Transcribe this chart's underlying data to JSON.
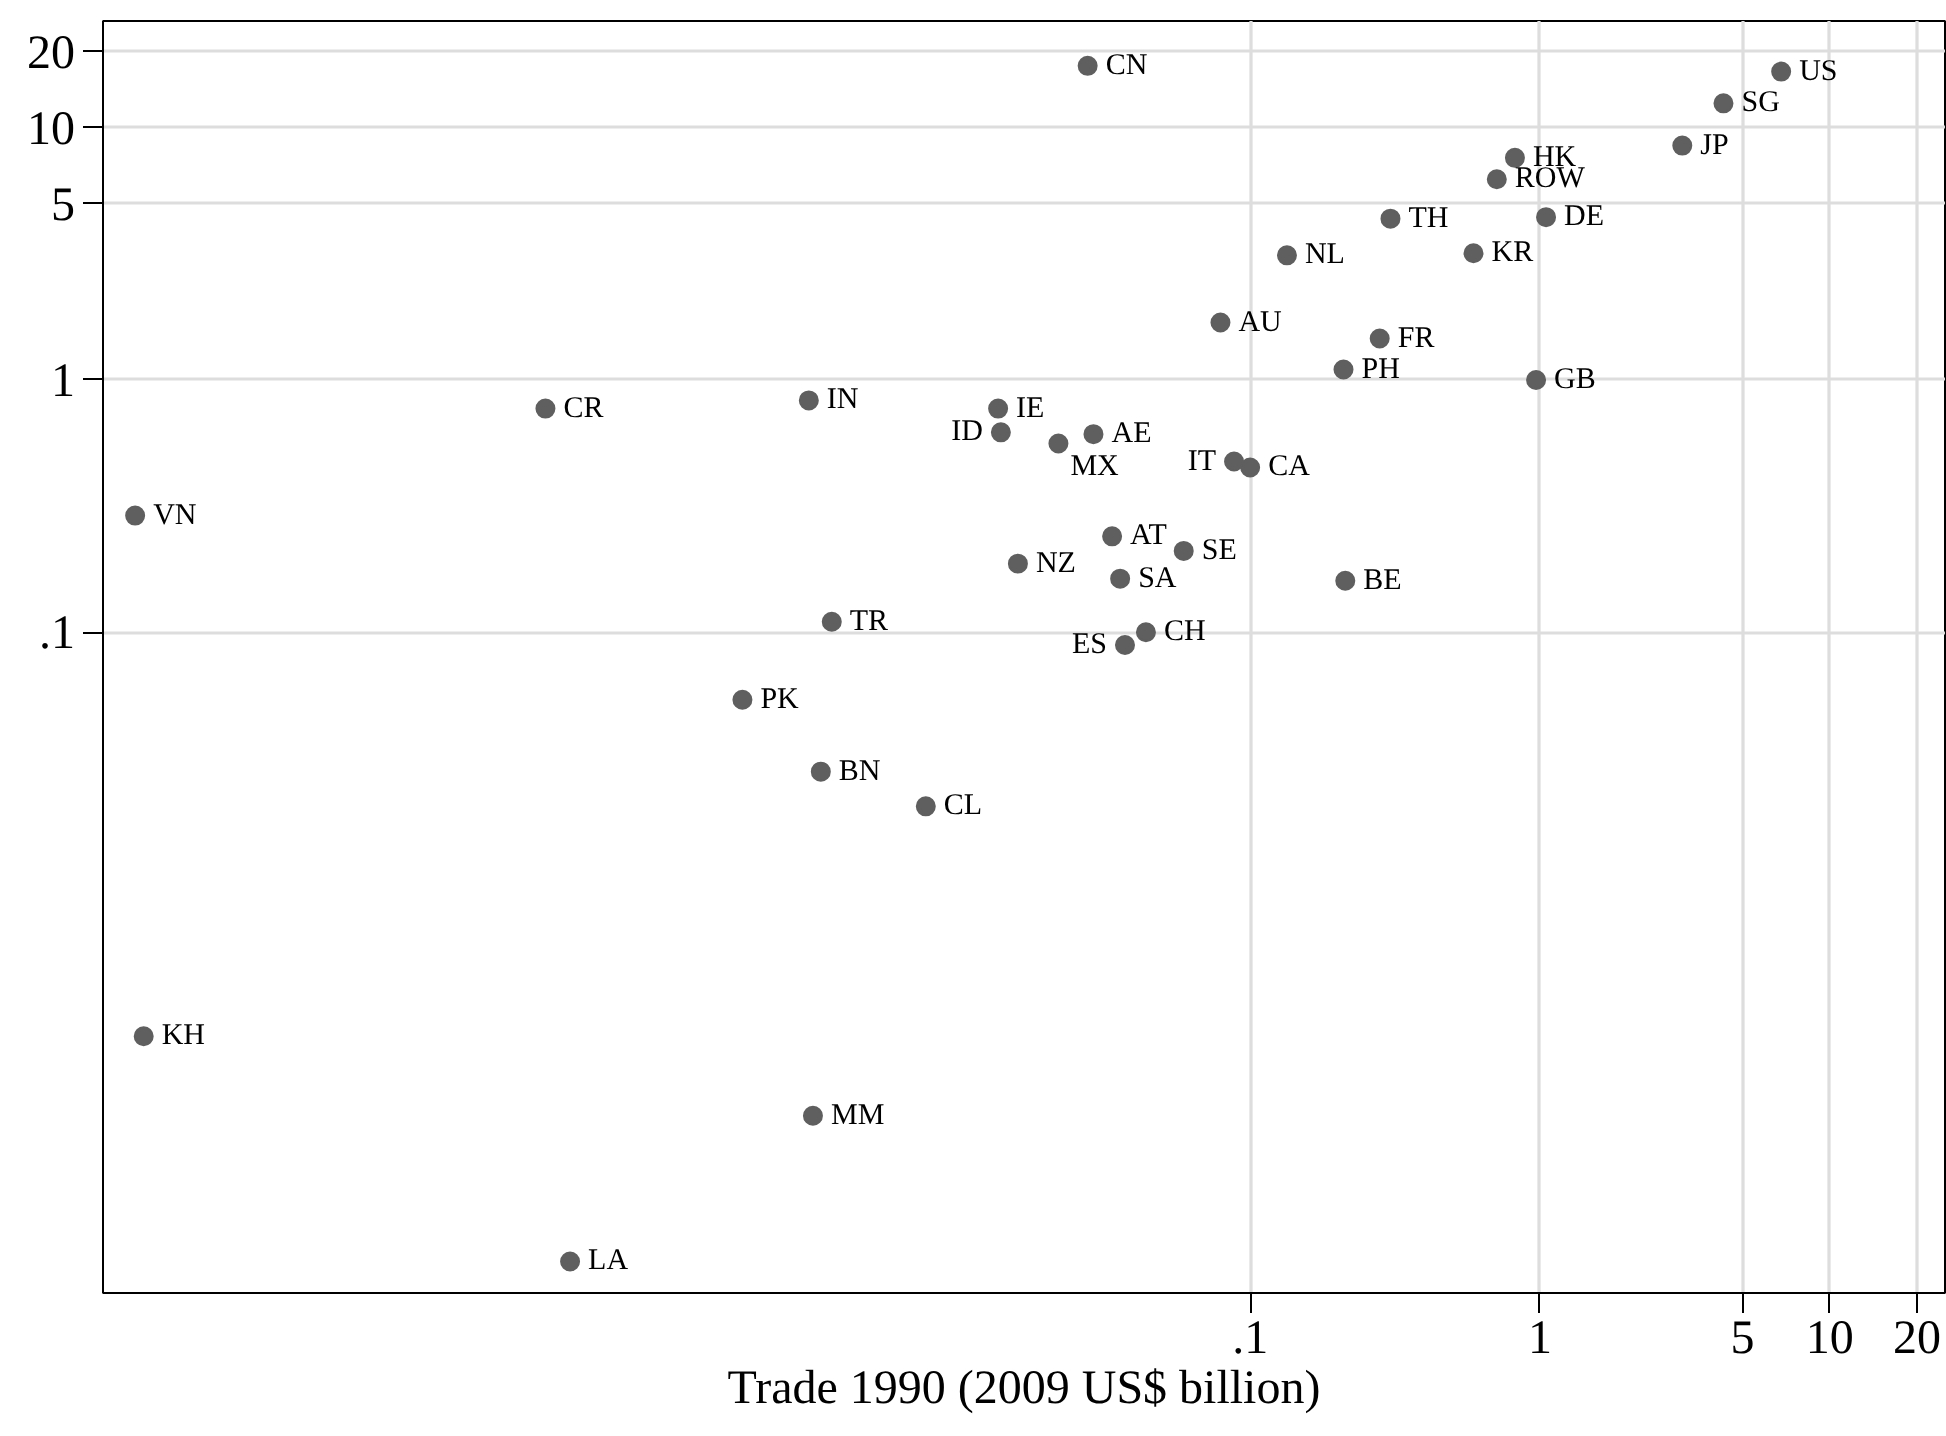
{
  "chart_data": {
    "type": "scatter",
    "xlabel": "Trade 1990 (2009 US$ billion)",
    "log": "xy",
    "xlim": [
      1.1e-05,
      25
    ],
    "ylim": [
      0.00024,
      26.5
    ],
    "xticks": [
      {
        "value": 0.1,
        "label": ".1"
      },
      1,
      5,
      10,
      20
    ],
    "yticks": [
      {
        "value": 0.1,
        "label": ".1"
      },
      1,
      5,
      10,
      20
    ],
    "grid": true,
    "marker": "circle",
    "series": [
      {
        "color": "#5f5f5f",
        "x": [
          1.42e-05,
          0.00037,
          0.0275,
          0.079,
          0.134,
          0.003,
          0.0135,
          0.0138,
          0.0218,
          0.0288,
          0.088,
          0.1,
          0.0334,
          0.059,
          0.0158,
          0.0356,
          0.0036,
          0.0437,
          0.037,
          0.00177,
          6.8,
          4.3,
          3.1,
          0.82,
          0.71,
          0.305,
          1.05,
          0.59,
          0.28,
          0.21,
          0.97,
          0.213,
          1.52e-05,
          0.00045,
          0.0033,
          0.0076,
          0.0031
        ],
        "values": [
          0.29,
          0.77,
          17.6,
          1.69,
          3.12,
          0.83,
          0.77,
          0.62,
          0.56,
          0.61,
          0.475,
          0.45,
          0.24,
          0.21,
          0.187,
          0.163,
          0.11,
          0.1,
          0.089,
          0.054,
          16.7,
          12.5,
          8.5,
          7.6,
          6.25,
          4.36,
          4.42,
          3.18,
          1.46,
          1.1,
          1.0,
          0.16,
          0.0025,
          0.00032,
          0.028,
          0.0204,
          0.00121
        ]
      }
    ],
    "annotations": [
      {
        "text": "VN",
        "x": 1.42e-05,
        "y": 0.29
      },
      {
        "text": "CR",
        "x": 0.00037,
        "y": 0.77
      },
      {
        "text": "CN",
        "x": 0.0275,
        "y": 17.6
      },
      {
        "text": "AU",
        "x": 0.079,
        "y": 1.69
      },
      {
        "text": "NL",
        "x": 0.134,
        "y": 3.12
      },
      {
        "text": "IN",
        "x": 0.003,
        "y": 0.83
      },
      {
        "text": "IE",
        "x": 0.0135,
        "y": 0.77
      },
      {
        "text": "ID",
        "x": 0.0138,
        "y": 0.62
      },
      {
        "text": "MX",
        "x": 0.0218,
        "y": 0.56
      },
      {
        "text": "AE",
        "x": 0.0288,
        "y": 0.61
      },
      {
        "text": "IT",
        "x": 0.088,
        "y": 0.475
      },
      {
        "text": "CA",
        "x": 0.1,
        "y": 0.45
      },
      {
        "text": "AT",
        "x": 0.0334,
        "y": 0.24
      },
      {
        "text": "SE",
        "x": 0.059,
        "y": 0.21
      },
      {
        "text": "NZ",
        "x": 0.0158,
        "y": 0.187
      },
      {
        "text": "SA",
        "x": 0.0356,
        "y": 0.163
      },
      {
        "text": "TR",
        "x": 0.0036,
        "y": 0.11
      },
      {
        "text": "CH",
        "x": 0.0437,
        "y": 0.1
      },
      {
        "text": "ES",
        "x": 0.037,
        "y": 0.089
      },
      {
        "text": "PK",
        "x": 0.00177,
        "y": 0.054
      },
      {
        "text": "US",
        "x": 6.8,
        "y": 16.7
      },
      {
        "text": "SG",
        "x": 4.3,
        "y": 12.5
      },
      {
        "text": "JP",
        "x": 3.1,
        "y": 8.5
      },
      {
        "text": "HK",
        "x": 0.82,
        "y": 7.6
      },
      {
        "text": "ROW",
        "x": 0.71,
        "y": 6.25
      },
      {
        "text": "TH",
        "x": 0.305,
        "y": 4.36
      },
      {
        "text": "DE",
        "x": 1.05,
        "y": 4.42
      },
      {
        "text": "KR",
        "x": 0.59,
        "y": 3.18
      },
      {
        "text": "FR",
        "x": 0.28,
        "y": 1.46
      },
      {
        "text": "PH",
        "x": 0.21,
        "y": 1.1
      },
      {
        "text": "GB",
        "x": 0.97,
        "y": 1.0
      },
      {
        "text": "BE",
        "x": 0.213,
        "y": 0.16
      },
      {
        "text": "KH",
        "x": 1.52e-05,
        "y": 0.0025
      },
      {
        "text": "LA",
        "x": 0.00045,
        "y": 0.00032
      },
      {
        "text": "BN",
        "x": 0.0033,
        "y": 0.028
      },
      {
        "text": "CL",
        "x": 0.0076,
        "y": 0.0204
      },
      {
        "text": "MM",
        "x": 0.0031,
        "y": 0.00121
      }
    ]
  }
}
